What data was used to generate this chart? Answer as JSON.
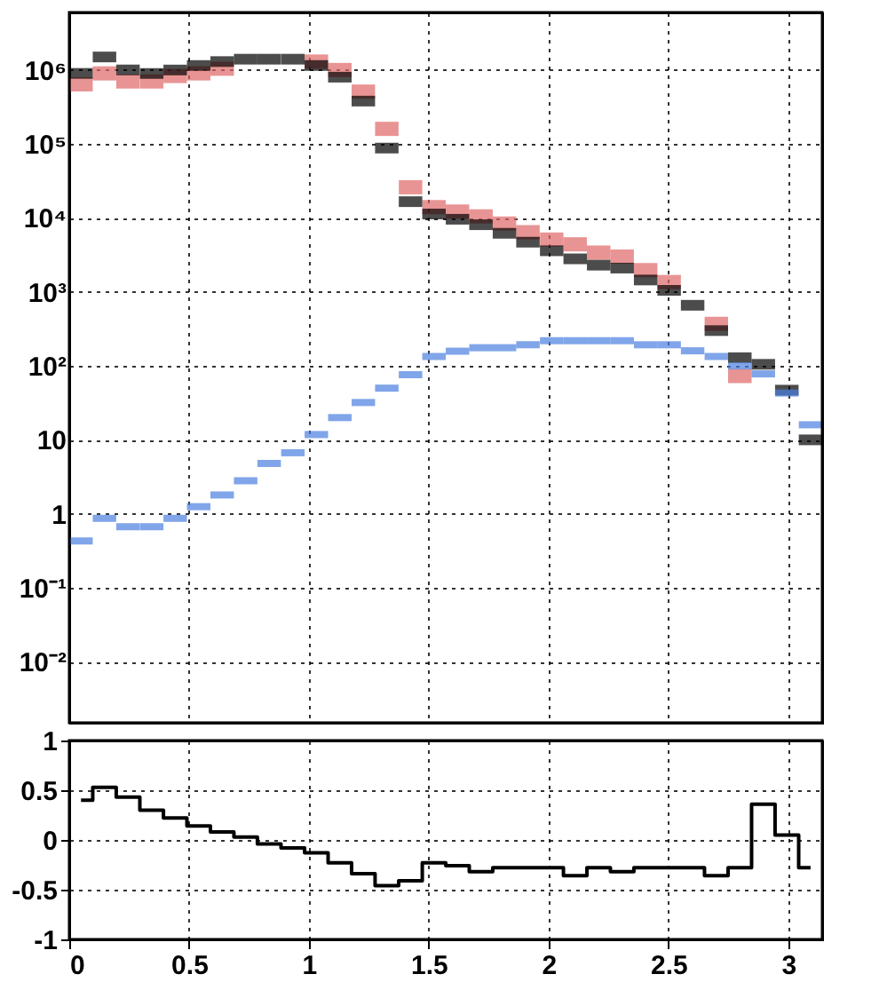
{
  "chart_data": [
    {
      "type": "scatter",
      "log": "y",
      "grid": true,
      "tick_labels": "y",
      "x": [
        0.049,
        0.147,
        0.245,
        0.344,
        0.442,
        0.54,
        0.638,
        0.736,
        0.834,
        0.933,
        1.031,
        1.129,
        1.227,
        1.325,
        1.424,
        1.522,
        1.62,
        1.718,
        1.816,
        1.914,
        2.013,
        2.111,
        2.209,
        2.307,
        2.405,
        2.503,
        2.601,
        2.7,
        2.798,
        2.896,
        2.994,
        3.093
      ],
      "xlim": [
        0,
        3.1416
      ],
      "xticks": [
        0,
        0.5,
        1,
        1.5,
        2,
        2.5,
        3
      ],
      "ylim": [
        0.0015,
        6000000
      ],
      "yticks": [
        {
          "value": 0.01,
          "label": "10⁻²"
        },
        {
          "value": 0.1,
          "label": "10⁻¹"
        },
        1,
        10,
        {
          "value": 100,
          "label": "10²"
        },
        {
          "value": 1000,
          "label": "10³"
        },
        {
          "value": 10000,
          "label": "10⁴"
        },
        {
          "value": 100000,
          "label": "10⁵"
        },
        {
          "value": 1000000,
          "label": "10⁶"
        }
      ],
      "series": [
        {
          "color": "#e06666",
          "values": [
            640000,
            900000,
            700000,
            700000,
            830000,
            900000,
            1040000,
            null,
            null,
            null,
            1300000,
            1000000,
            510000,
            160000,
            26000,
            14000,
            12200,
            10500,
            8400,
            6400,
            5100,
            4400,
            3400,
            3000,
            1970,
            1360,
            null,
            370,
            73,
            null,
            null,
            null
          ]
        },
        {
          "color": "#000000",
          "values": [
            900000,
            1500000,
            1000000,
            900000,
            1000000,
            1150000,
            1300000,
            1400000,
            1400000,
            1400000,
            1150000,
            800000,
            380000,
            88000,
            16600,
            11300,
            9600,
            8100,
            6200,
            4700,
            3600,
            2800,
            2300,
            2100,
            1450,
            1050,
            660,
            300,
            129,
            105,
            47,
            10
          ]
        },
        {
          "color": "#4a7fe0",
          "values": [
            0.43,
            0.87,
            0.67,
            0.67,
            0.87,
            1.25,
            1.8,
            2.8,
            4.8,
            6.7,
            11.8,
            20,
            32,
            50,
            76,
            134,
            158,
            176,
            176,
            193,
            219,
            219,
            219,
            219,
            193,
            193,
            160,
            134,
            100,
            78,
            43,
            16
          ]
        }
      ]
    },
    {
      "type": "step",
      "grid": true,
      "x": [
        0.049,
        0.147,
        0.245,
        0.344,
        0.442,
        0.54,
        0.638,
        0.736,
        0.834,
        0.933,
        1.031,
        1.129,
        1.227,
        1.325,
        1.424,
        1.522,
        1.62,
        1.718,
        1.816,
        1.914,
        2.013,
        2.111,
        2.209,
        2.307,
        2.405,
        2.503,
        2.601,
        2.7,
        2.798,
        2.896,
        2.994,
        3.093
      ],
      "xlim": [
        0,
        3.1416
      ],
      "xticks": [
        0,
        0.5,
        1,
        1.5,
        2,
        2.5,
        3
      ],
      "ylim": [
        -1,
        1
      ],
      "yticks": [
        -1,
        -0.5,
        0,
        0.5,
        1
      ],
      "series": [
        {
          "color": "#000000",
          "values": [
            0.4,
            0.53,
            0.43,
            0.3,
            0.22,
            0.14,
            0.08,
            0.03,
            -0.04,
            -0.08,
            -0.13,
            -0.23,
            -0.34,
            -0.46,
            -0.41,
            -0.23,
            -0.26,
            -0.32,
            -0.28,
            -0.28,
            -0.28,
            -0.36,
            -0.28,
            -0.32,
            -0.28,
            -0.28,
            -0.28,
            -0.36,
            -0.28,
            0.36,
            0.05,
            -0.28
          ]
        }
      ]
    }
  ]
}
